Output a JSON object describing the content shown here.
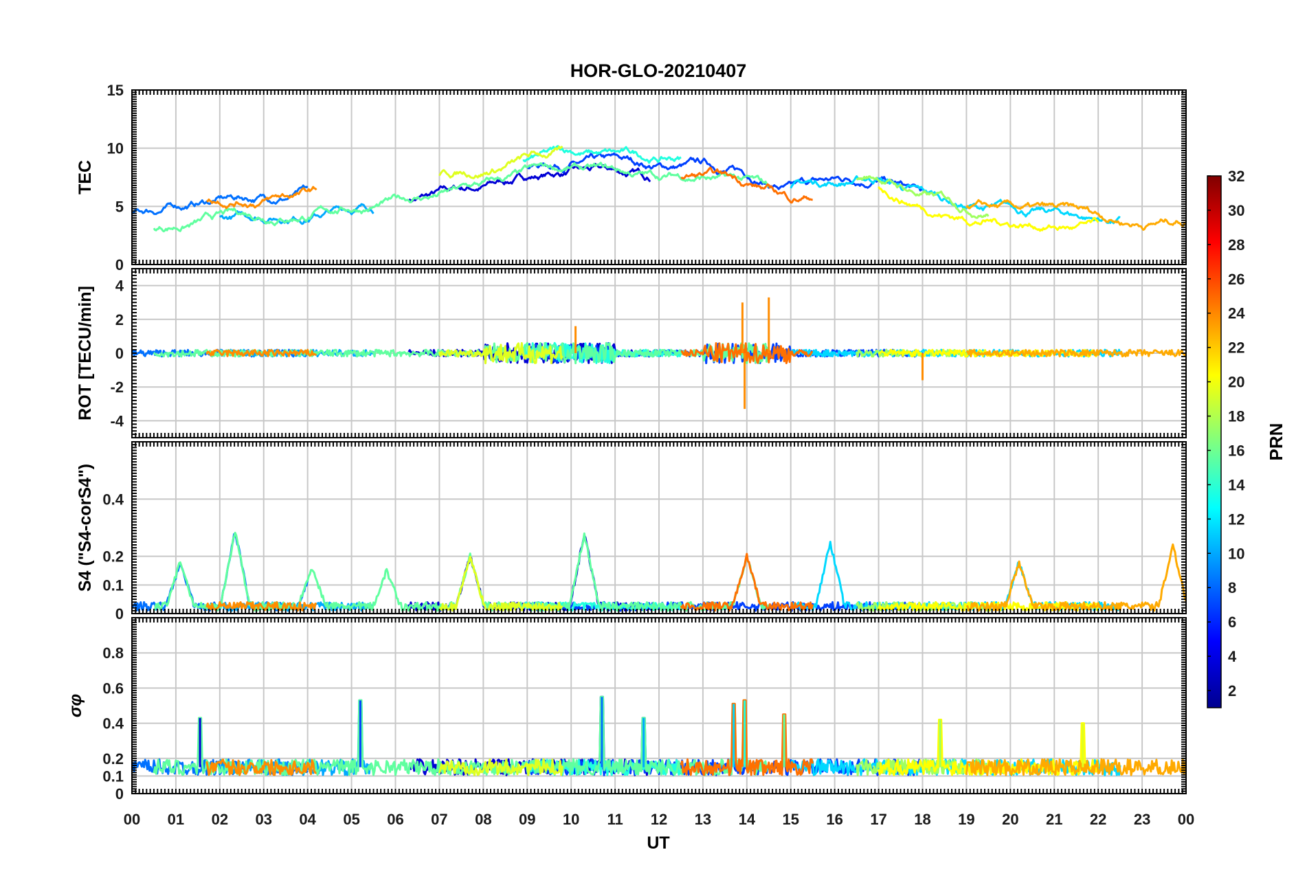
{
  "chart_data": {
    "type": "line",
    "title": "HOR-GLO-20210407",
    "xlabel": "UT",
    "x_ticks": [
      "00",
      "01",
      "02",
      "03",
      "04",
      "05",
      "06",
      "07",
      "08",
      "09",
      "10",
      "11",
      "12",
      "13",
      "14",
      "15",
      "16",
      "17",
      "18",
      "19",
      "20",
      "21",
      "22",
      "23",
      "00"
    ],
    "xlim_hours": [
      0,
      24
    ],
    "grid": true,
    "panels": [
      {
        "ylabel": "TEC",
        "ylim": [
          0,
          15
        ],
        "yticks": [
          0,
          5,
          10,
          15
        ],
        "yticklabels": [
          "0",
          "5",
          "10",
          "15"
        ],
        "mean_profile": [
          [
            0,
            3.5
          ],
          [
            1,
            4.2
          ],
          [
            2,
            4.8
          ],
          [
            3,
            5.0
          ],
          [
            4,
            5.4
          ],
          [
            5,
            5.8
          ],
          [
            6,
            6.2
          ],
          [
            7,
            6.8
          ],
          [
            8,
            7.4
          ],
          [
            9,
            8.3
          ],
          [
            10,
            8.8
          ],
          [
            11,
            8.5
          ],
          [
            12,
            8.2
          ],
          [
            13,
            8.4
          ],
          [
            14,
            7.8
          ],
          [
            15,
            6.5
          ],
          [
            16,
            7.0
          ],
          [
            17,
            7.5
          ],
          [
            18,
            6.0
          ],
          [
            19,
            5.0
          ],
          [
            20,
            4.6
          ],
          [
            21,
            4.3
          ],
          [
            22,
            3.9
          ],
          [
            23,
            3.6
          ],
          [
            24,
            4.0
          ]
        ]
      },
      {
        "ylabel": "ROT [TECU/min]",
        "ylim": [
          -5,
          5
        ],
        "yticks": [
          -4,
          -2,
          0,
          2,
          4
        ],
        "yticklabels": [
          "-4",
          "-2",
          "0",
          "2",
          "4"
        ],
        "spikes": [
          [
            13.9,
            3.0
          ],
          [
            13.95,
            -3.3
          ],
          [
            14.5,
            3.3
          ],
          [
            10.1,
            1.6
          ],
          [
            18.0,
            -1.6
          ]
        ]
      },
      {
        "ylabel": "S4 (\"S4-corS4\")",
        "ylim": [
          0,
          0.6
        ],
        "yticks": [
          0,
          0.1,
          0.2,
          0.4
        ],
        "yticklabels": [
          "0",
          "0.1",
          "0.2",
          "0.4"
        ],
        "peaks": [
          [
            1.1,
            0.17
          ],
          [
            2.35,
            0.28
          ],
          [
            4.1,
            0.15
          ],
          [
            5.8,
            0.14
          ],
          [
            7.7,
            0.19
          ],
          [
            10.3,
            0.27
          ],
          [
            14.0,
            0.19
          ],
          [
            15.9,
            0.24
          ],
          [
            20.2,
            0.17
          ],
          [
            23.7,
            0.23
          ]
        ]
      },
      {
        "ylabel": "σφ",
        "ylim": [
          0,
          1
        ],
        "yticks": [
          0,
          0.1,
          0.2,
          0.4,
          0.6,
          0.8
        ],
        "yticklabels": [
          "0",
          "0.1",
          "0.2",
          "0.4",
          "0.6",
          "0.8"
        ],
        "baseline": 0.15,
        "spikes": [
          [
            1.55,
            0.43
          ],
          [
            5.2,
            0.53
          ],
          [
            10.7,
            0.55
          ],
          [
            11.65,
            0.43
          ],
          [
            13.7,
            0.51
          ],
          [
            13.95,
            0.53
          ],
          [
            14.85,
            0.45
          ],
          [
            18.4,
            0.42
          ],
          [
            21.65,
            0.4
          ]
        ]
      }
    ],
    "colorbar": {
      "label": "PRN",
      "range": [
        1,
        32
      ],
      "ticks": [
        "2",
        "4",
        "6",
        "8",
        "10",
        "12",
        "14",
        "16",
        "18",
        "20",
        "22",
        "24",
        "26",
        "28",
        "30",
        "32"
      ],
      "colormap": "jet"
    },
    "series": [
      {
        "prn": 2,
        "color": "#0000d5",
        "start": 6.3,
        "end": 11.8
      },
      {
        "prn": 4,
        "color": "#0040ff",
        "start": 9.0,
        "end": 18.0
      },
      {
        "prn": 6,
        "color": "#0070ff",
        "start": 0.0,
        "end": 4.0
      },
      {
        "prn": 9,
        "color": "#00a8ff",
        "start": 2.0,
        "end": 5.5
      },
      {
        "prn": 11,
        "color": "#00d8ff",
        "start": 15.0,
        "end": 22.5
      },
      {
        "prn": 13,
        "color": "#20ffdf",
        "start": 8.9,
        "end": 12.5
      },
      {
        "prn": 15,
        "color": "#60ff9f",
        "start": 0.5,
        "end": 14.5
      },
      {
        "prn": 17,
        "color": "#9fff60",
        "start": 16.5,
        "end": 19.5
      },
      {
        "prn": 19,
        "color": "#dfff20",
        "start": 7.0,
        "end": 9.8
      },
      {
        "prn": 20,
        "color": "#ffff00",
        "start": 17.0,
        "end": 22.0
      },
      {
        "prn": 22,
        "color": "#ffaa00",
        "start": 19.0,
        "end": 24.0
      },
      {
        "prn": 23,
        "color": "#ff8c00",
        "start": 1.7,
        "end": 4.2
      },
      {
        "prn": 24,
        "color": "#ff7000",
        "start": 12.5,
        "end": 15.5
      }
    ]
  }
}
